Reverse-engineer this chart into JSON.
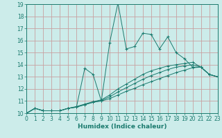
{
  "xlabel": "Humidex (Indice chaleur)",
  "ylabel": "",
  "bg_color": "#ccecea",
  "line_color": "#1a7a6e",
  "grid_color": "#c8a0a0",
  "xlim": [
    0,
    23
  ],
  "ylim": [
    10,
    19
  ],
  "xticks": [
    0,
    1,
    2,
    3,
    4,
    5,
    6,
    7,
    8,
    9,
    10,
    11,
    12,
    13,
    14,
    15,
    16,
    17,
    18,
    19,
    20,
    21,
    22,
    23
  ],
  "yticks": [
    10,
    11,
    12,
    13,
    14,
    15,
    16,
    17,
    18,
    19
  ],
  "lines": [
    {
      "x": [
        0,
        1,
        2,
        3,
        4,
        5,
        6,
        7,
        8,
        9,
        10,
        11,
        12,
        13,
        14,
        15,
        16,
        17,
        18,
        19,
        20,
        21,
        22,
        23
      ],
      "y": [
        10,
        10.4,
        10.2,
        10.2,
        10.2,
        10.4,
        10.5,
        13.7,
        13.2,
        11.0,
        15.8,
        19.1,
        15.3,
        15.5,
        16.6,
        16.5,
        15.3,
        16.3,
        15.0,
        14.5,
        13.8,
        13.8,
        13.2,
        13.0
      ]
    },
    {
      "x": [
        0,
        1,
        2,
        3,
        4,
        5,
        6,
        7,
        8,
        9,
        10,
        11,
        12,
        13,
        14,
        15,
        16,
        17,
        18,
        19,
        20,
        21,
        22,
        23
      ],
      "y": [
        10,
        10.4,
        10.2,
        10.2,
        10.2,
        10.4,
        10.55,
        10.75,
        10.95,
        11.1,
        11.5,
        12.0,
        12.4,
        12.8,
        13.2,
        13.5,
        13.7,
        13.9,
        14.0,
        14.1,
        14.2,
        13.8,
        13.2,
        13.0
      ]
    },
    {
      "x": [
        0,
        1,
        2,
        3,
        4,
        5,
        6,
        7,
        8,
        9,
        10,
        11,
        12,
        13,
        14,
        15,
        16,
        17,
        18,
        19,
        20,
        21,
        22,
        23
      ],
      "y": [
        10,
        10.4,
        10.2,
        10.2,
        10.2,
        10.4,
        10.5,
        10.7,
        10.9,
        11.05,
        11.35,
        11.75,
        12.1,
        12.45,
        12.8,
        13.1,
        13.35,
        13.6,
        13.8,
        13.9,
        14.0,
        13.8,
        13.2,
        13.0
      ]
    },
    {
      "x": [
        0,
        1,
        2,
        3,
        4,
        5,
        6,
        7,
        8,
        9,
        10,
        11,
        12,
        13,
        14,
        15,
        16,
        17,
        18,
        19,
        20,
        21,
        22,
        23
      ],
      "y": [
        10,
        10.4,
        10.2,
        10.2,
        10.2,
        10.4,
        10.5,
        10.7,
        10.9,
        11.0,
        11.2,
        11.5,
        11.8,
        12.05,
        12.35,
        12.6,
        12.85,
        13.1,
        13.35,
        13.55,
        13.75,
        13.8,
        13.2,
        13.0
      ]
    }
  ],
  "xlabel_fontsize": 6.5,
  "tick_fontsize": 5.5
}
